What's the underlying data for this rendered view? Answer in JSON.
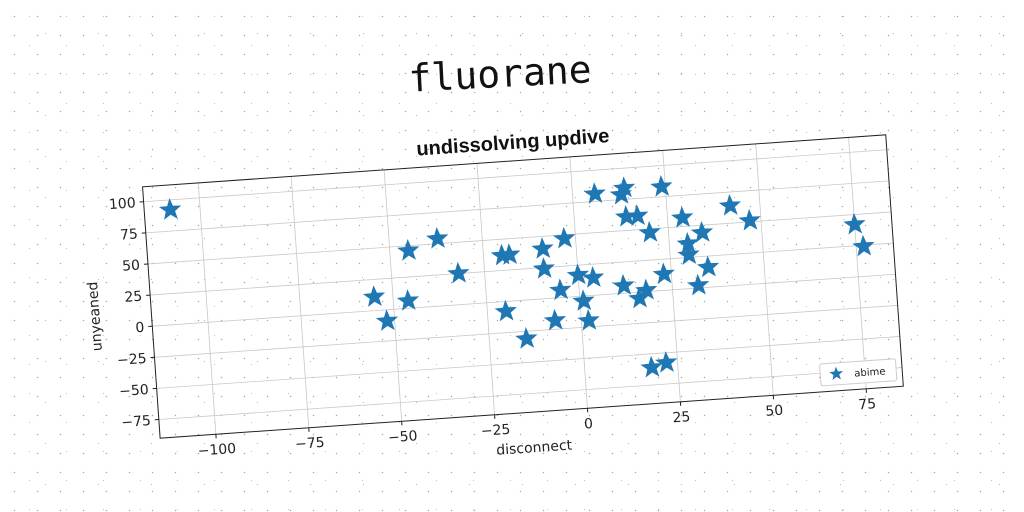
{
  "page": {
    "supertitle": "fluorane"
  },
  "chart_data": {
    "type": "scatter",
    "title": "undissolving updive",
    "xlabel": "disconnect",
    "ylabel": "unyeaned",
    "xlim": [
      -115,
      85
    ],
    "ylim": [
      -90,
      112
    ],
    "xticks": [
      -100,
      -75,
      -50,
      -25,
      0,
      25,
      50,
      75
    ],
    "yticks": [
      -75,
      -50,
      -25,
      0,
      25,
      50,
      75,
      100
    ],
    "grid": true,
    "legend_position": "lower-right",
    "color": "#1f77b4",
    "marker": "star",
    "series": [
      {
        "name": "abime",
        "points": [
          [
            -108,
            92
          ],
          [
            -45,
            46
          ],
          [
            -37,
            54
          ],
          [
            -32,
            25
          ],
          [
            -55,
            11
          ],
          [
            -46,
            6
          ],
          [
            -52,
            -9
          ],
          [
            -20,
            37
          ],
          [
            -18,
            37
          ],
          [
            -20,
            -8
          ],
          [
            -15,
            -31
          ],
          [
            -9,
            40
          ],
          [
            -9,
            24
          ],
          [
            -7,
            -18
          ],
          [
            -5,
            6
          ],
          [
            -3,
            47
          ],
          [
            0,
            17
          ],
          [
            1,
            -4
          ],
          [
            2,
            -20
          ],
          [
            4,
            14
          ],
          [
            6,
            81
          ],
          [
            13,
            79
          ],
          [
            14,
            84
          ],
          [
            12,
            6
          ],
          [
            14,
            61
          ],
          [
            17,
            61
          ],
          [
            16,
            -5
          ],
          [
            18,
            1
          ],
          [
            18,
            -61
          ],
          [
            20,
            47
          ],
          [
            22,
            -58
          ],
          [
            23,
            13
          ],
          [
            24,
            83
          ],
          [
            29,
            57
          ],
          [
            30,
            36
          ],
          [
            30,
            27
          ],
          [
            32,
            2
          ],
          [
            34,
            44
          ],
          [
            35,
            16
          ],
          [
            42,
            64
          ],
          [
            47,
            51
          ],
          [
            75,
            42
          ],
          [
            77,
            24
          ]
        ]
      }
    ]
  }
}
